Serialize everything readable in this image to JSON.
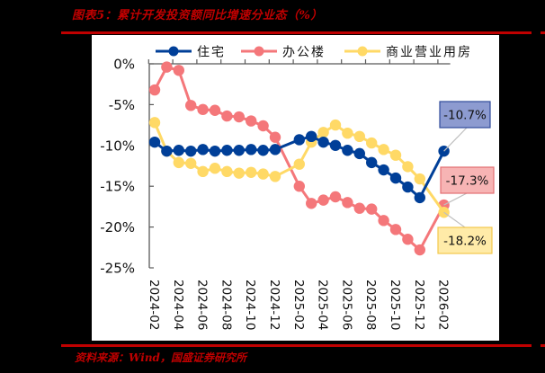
{
  "header": {
    "title": "图表5：累计开发投资额同比增速分业态（%）"
  },
  "footer": {
    "source": "资料来源：Wind，国盛证券研究所"
  },
  "colors": {
    "accent_red": "#C00000",
    "residential": "#003F98",
    "office": "#F4777A",
    "commercial": "#FFD966"
  },
  "chart_data": {
    "type": "line",
    "title": "累计开发投资额同比增速分业态（%）",
    "xlabel": "",
    "ylabel": "",
    "ylim": [
      -25,
      0
    ],
    "yticks": [
      "0%",
      "-5%",
      "-10%",
      "-15%",
      "-20%",
      "-25%"
    ],
    "ytick_values": [
      0,
      -5,
      -10,
      -15,
      -20,
      -25
    ],
    "xtick_labels": [
      "2024-02",
      "2024-04",
      "2024-06",
      "2024-08",
      "2024-10",
      "2024-12",
      "2025-02",
      "2025-04",
      "2025-06",
      "2025-08",
      "2025-10",
      "2025-12",
      "2026-02"
    ],
    "x": [
      "2024-02",
      "2024-03",
      "2024-04",
      "2024-05",
      "2024-06",
      "2024-07",
      "2024-08",
      "2024-09",
      "2024-10",
      "2024-11",
      "2024-12",
      "2025-02",
      "2025-03",
      "2025-04",
      "2025-05",
      "2025-06",
      "2025-07",
      "2025-08",
      "2025-09",
      "2025-10",
      "2025-11",
      "2025-12",
      "2026-02"
    ],
    "legend_position": "top",
    "grid": false,
    "series": [
      {
        "name": "住宅",
        "color": "#003F98",
        "values": [
          -9.6,
          -10.7,
          -10.6,
          -10.7,
          -10.5,
          -10.7,
          -10.6,
          -10.6,
          -10.5,
          -10.6,
          -10.5,
          -9.3,
          -8.9,
          -9.6,
          -10.0,
          -10.6,
          -11.0,
          -12.1,
          -13.0,
          -14.0,
          -15.1,
          -16.4,
          -10.7
        ],
        "end_label": "-10.7%",
        "box_fill": "#8D9BD0",
        "box_stroke": "#2F4A9A"
      },
      {
        "name": "办公楼",
        "color": "#F4777A",
        "values": [
          -3.2,
          -0.4,
          -0.8,
          -5.1,
          -5.6,
          -5.7,
          -6.4,
          -6.5,
          -7.0,
          -7.6,
          -9.0,
          -15.0,
          -17.1,
          -16.7,
          -16.3,
          -17.0,
          -17.7,
          -17.8,
          -19.2,
          -20.3,
          -21.5,
          -22.8,
          -17.3
        ],
        "end_label": "-17.3%",
        "box_fill": "#F7B4B4",
        "box_stroke": "#E36E72"
      },
      {
        "name": "商业营业用房",
        "color": "#FFD966",
        "values": [
          -7.2,
          -10.7,
          -12.1,
          -12.2,
          -13.2,
          -12.8,
          -13.2,
          -13.4,
          -13.3,
          -13.5,
          -13.8,
          -12.3,
          -9.6,
          -8.4,
          -7.5,
          -8.5,
          -8.9,
          -9.7,
          -10.5,
          -11.2,
          -12.6,
          -14.1,
          -18.2
        ],
        "end_label": "-18.2%",
        "box_fill": "#FFEBA8",
        "box_stroke": "#F2C94C"
      }
    ]
  }
}
